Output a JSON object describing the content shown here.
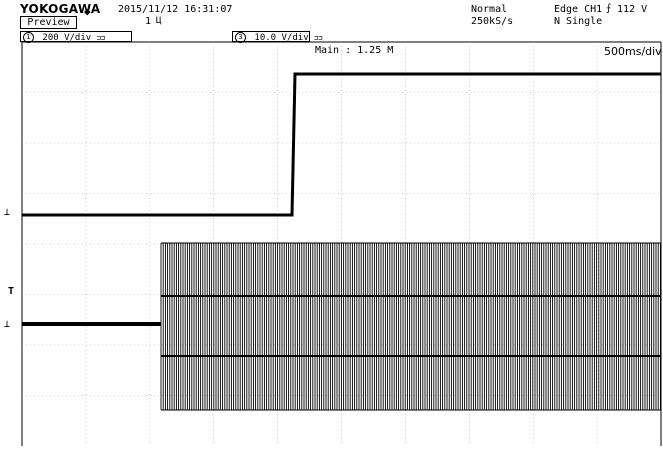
{
  "header": {
    "brand": "YOKOGAWA",
    "brand_diamond": "◆",
    "datetime": "2015/11/12 16:31:07",
    "preview_label": "Preview",
    "record_number": "1",
    "record_mark": "Ц",
    "acquisition_mode": "Normal",
    "sample_rate": "250kS/s",
    "trigger_source": "Edge CH1",
    "trigger_slope_glyph": "⨍",
    "trigger_level": "112 V",
    "trigger_mode": "N Single"
  },
  "channels": [
    {
      "number": "1",
      "scale": "200 V/div",
      "suffix": "⊐⊐"
    },
    {
      "number": "3",
      "scale": "10.0 V/div",
      "suffix": "⊐⊐"
    }
  ],
  "screen": {
    "zoom_label": "Main : 1.25 M",
    "time_div": "500ms/div",
    "ch1_ground_marker": "⊥",
    "trigger_marker": "T",
    "ch3_ground_marker": "⊥"
  },
  "colors": {
    "background": "#ffffff",
    "trace": "#000000",
    "grid": "#9a9a9a"
  }
}
